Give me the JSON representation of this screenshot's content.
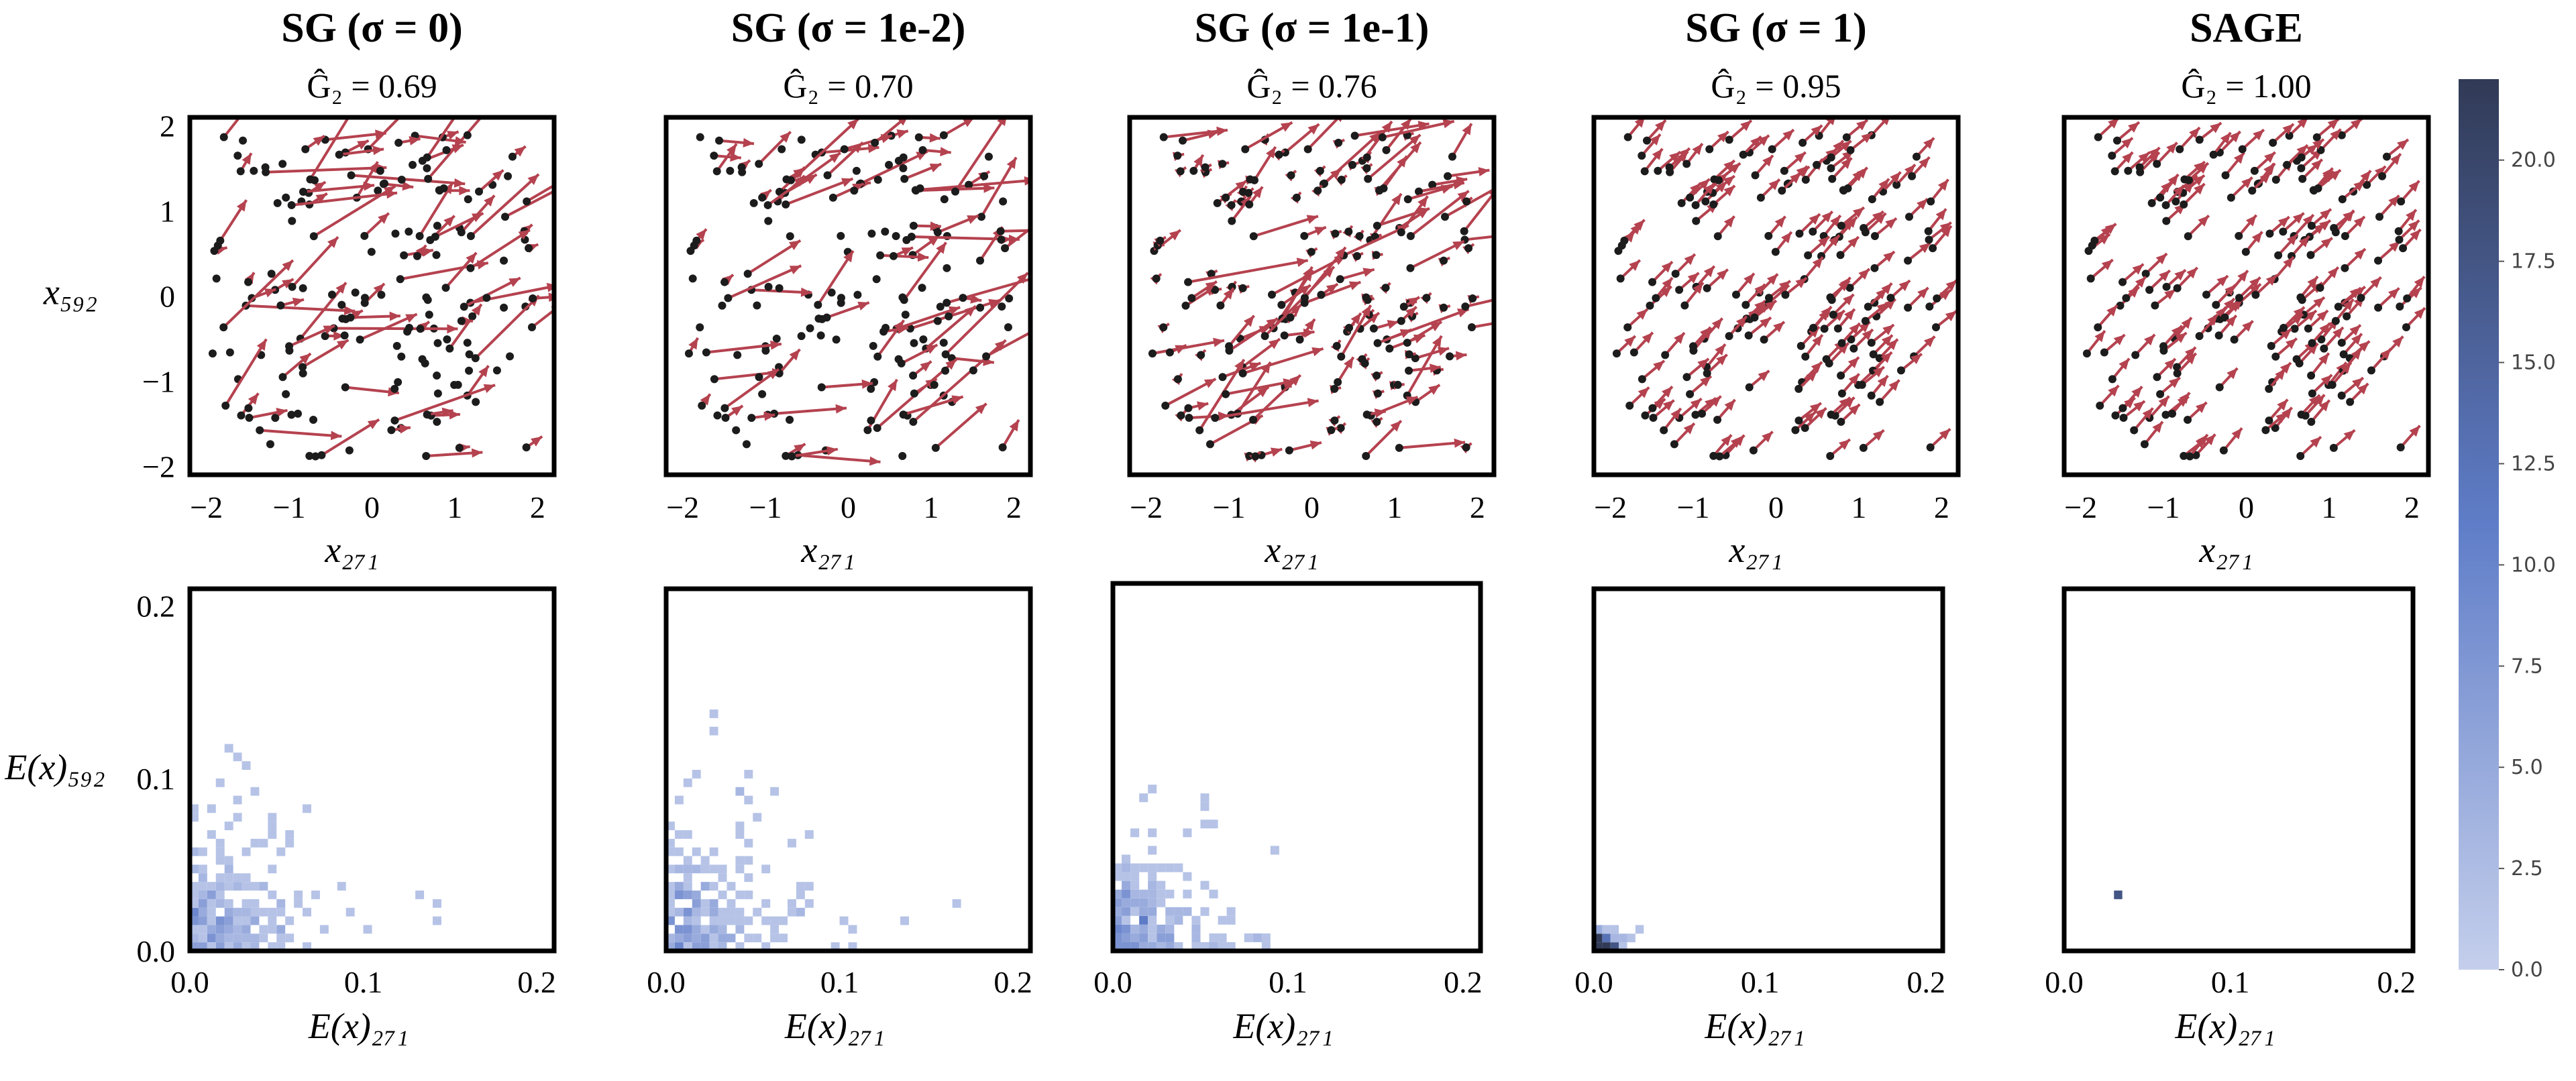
{
  "colors": {
    "arrow": "#b5424f",
    "dot": "#1c1c1c",
    "heat_low": "#c5cfec",
    "heat_high": "#313a56"
  },
  "colorbar": {
    "min": 0.0,
    "max": 22.0,
    "ticks": [
      "0.0",
      "2.5",
      "5.0",
      "7.5",
      "10.0",
      "12.5",
      "15.0",
      "17.5",
      "20.0"
    ],
    "colormap": "light-blue to dark-navy"
  },
  "chart_data": [
    {
      "type": "scatter",
      "title": "SG (σ = 0)",
      "subtitle": "Ĝ₂ = 0.69",
      "xlabel": "x₂₇₁",
      "ylabel": "x₅₉₂",
      "xlim": [
        -2.2,
        2.2
      ],
      "ylim": [
        -2.1,
        2.1
      ],
      "xticks": [
        "−2",
        "−1",
        "0",
        "1",
        "2"
      ],
      "yticks": [
        "−2",
        "−1",
        "0",
        "1",
        "2"
      ],
      "arrow_scale": "large"
    },
    {
      "type": "scatter",
      "title": "SG (σ = 1e-2)",
      "subtitle": "Ĝ₂ = 0.70",
      "xlabel": "x₂₇₁",
      "ylabel": "",
      "xlim": [
        -2.2,
        2.2
      ],
      "ylim": [
        -2.1,
        2.1
      ],
      "xticks": [
        "−2",
        "−1",
        "0",
        "1",
        "2"
      ],
      "yticks": [],
      "arrow_scale": "large"
    },
    {
      "type": "scatter",
      "title": "SG (σ = 1e-1)",
      "subtitle": "Ĝ₂ = 0.76",
      "xlabel": "x₂₇₁",
      "ylabel": "",
      "xlim": [
        -2.2,
        2.2
      ],
      "ylim": [
        -2.1,
        2.1
      ],
      "xticks": [
        "−2",
        "−1",
        "0",
        "1",
        "2"
      ],
      "yticks": [],
      "arrow_scale": "medium"
    },
    {
      "type": "scatter",
      "title": "SG (σ = 1)",
      "subtitle": "Ĝ₂ = 0.95",
      "xlabel": "x₂₇₁",
      "ylabel": "",
      "xlim": [
        -2.2,
        2.2
      ],
      "ylim": [
        -2.1,
        2.1
      ],
      "xticks": [
        "−2",
        "−1",
        "0",
        "1",
        "2"
      ],
      "yticks": [],
      "arrow_scale": "uniform"
    },
    {
      "type": "scatter",
      "title": "SAGE",
      "subtitle": "Ĝ₂ = 1.00",
      "xlabel": "x₂₇₁",
      "ylabel": "",
      "xlim": [
        -2.2,
        2.2
      ],
      "ylim": [
        -2.1,
        2.1
      ],
      "xticks": [
        "−2",
        "−1",
        "0",
        "1",
        "2"
      ],
      "yticks": [],
      "arrow_scale": "uniform"
    },
    {
      "type": "heatmap",
      "xlabel": "E(x)₂₇₁",
      "ylabel": "E(x)₅₉₂",
      "xlim": [
        0.0,
        0.21
      ],
      "ylim": [
        0.0,
        0.21
      ],
      "xticks": [
        "0.0",
        "0.1",
        "0.2"
      ],
      "yticks": [
        "0.0",
        "0.1",
        "0.2"
      ],
      "spread": "wide"
    },
    {
      "type": "heatmap",
      "xlabel": "E(x)₂₇₁",
      "ylabel": "",
      "xlim": [
        0.0,
        0.21
      ],
      "ylim": [
        0.0,
        0.21
      ],
      "xticks": [
        "0.0",
        "0.1",
        "0.2"
      ],
      "yticks": [],
      "spread": "wide"
    },
    {
      "type": "heatmap",
      "xlabel": "E(x)₂₇₁",
      "ylabel": "",
      "xlim": [
        0.0,
        0.21
      ],
      "ylim": [
        0.0,
        0.21
      ],
      "xticks": [
        "0.0",
        "0.1",
        "0.2"
      ],
      "yticks": [],
      "spread": "medium"
    },
    {
      "type": "heatmap",
      "xlabel": "E(x)₂₇₁",
      "ylabel": "",
      "xlim": [
        0.0,
        0.21
      ],
      "ylim": [
        0.0,
        0.21
      ],
      "xticks": [
        "0.0",
        "0.1",
        "0.2"
      ],
      "yticks": [],
      "spread": "tight",
      "peak": [
        0.01,
        0.01
      ]
    },
    {
      "type": "heatmap",
      "xlabel": "E(x)₂₇₁",
      "ylabel": "",
      "xlim": [
        0.0,
        0.21
      ],
      "ylim": [
        0.0,
        0.21
      ],
      "xticks": [
        "0.0",
        "0.1",
        "0.2"
      ],
      "yticks": [],
      "spread": "single",
      "peak": [
        0.03,
        0.033
      ]
    }
  ]
}
